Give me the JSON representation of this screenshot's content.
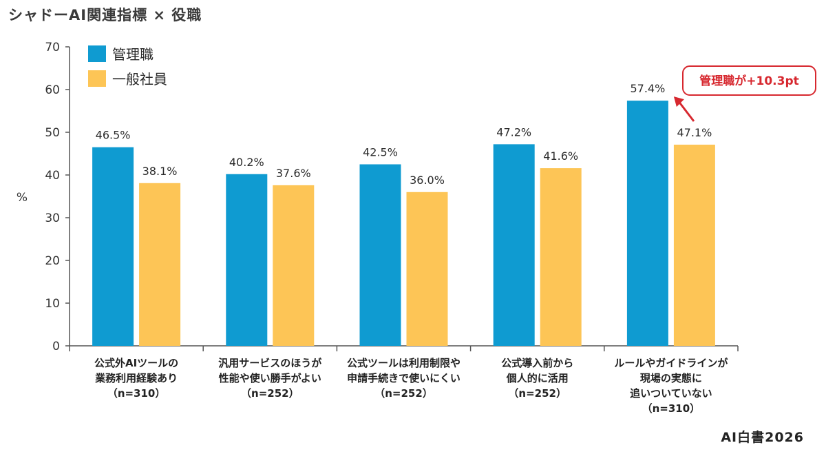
{
  "title": "シャドーAI関連指標 × 役職",
  "branding": "AI白書2026",
  "colors": {
    "manager": "#0f9bd1",
    "staff": "#fdc556",
    "accent": "#d7282f"
  },
  "annotation": {
    "text": "管理職が+10.3pt"
  },
  "chart_data": {
    "type": "bar",
    "ylabel": "%",
    "ylim": [
      0,
      70
    ],
    "yticks": [
      0,
      10,
      20,
      30,
      40,
      50,
      60,
      70
    ],
    "grid": false,
    "legend_position": "top-left",
    "categories": [
      [
        "公式外AIツールの",
        "業務利用経験あり",
        "（n=310）"
      ],
      [
        "汎用サービスのほうが",
        "性能や使い勝手がよい",
        "（n=252）"
      ],
      [
        "公式ツールは利用制限や",
        "申請手続きで使いにくい",
        "（n=252）"
      ],
      [
        "公式導入前から",
        "個人的に活用",
        "（n=252）"
      ],
      [
        "ルールやガイドラインが",
        "現場の実態に",
        "追いついていない",
        "（n=310）"
      ]
    ],
    "series": [
      {
        "name": "管理職",
        "values": [
          46.5,
          40.2,
          42.5,
          47.2,
          57.4
        ],
        "labels": [
          "46.5%",
          "40.2%",
          "42.5%",
          "47.2%",
          "57.4%"
        ]
      },
      {
        "name": "一般社員",
        "values": [
          38.1,
          37.6,
          36.0,
          41.6,
          47.1
        ],
        "labels": [
          "38.1%",
          "37.6%",
          "36.0%",
          "41.6%",
          "47.1%"
        ]
      }
    ]
  }
}
